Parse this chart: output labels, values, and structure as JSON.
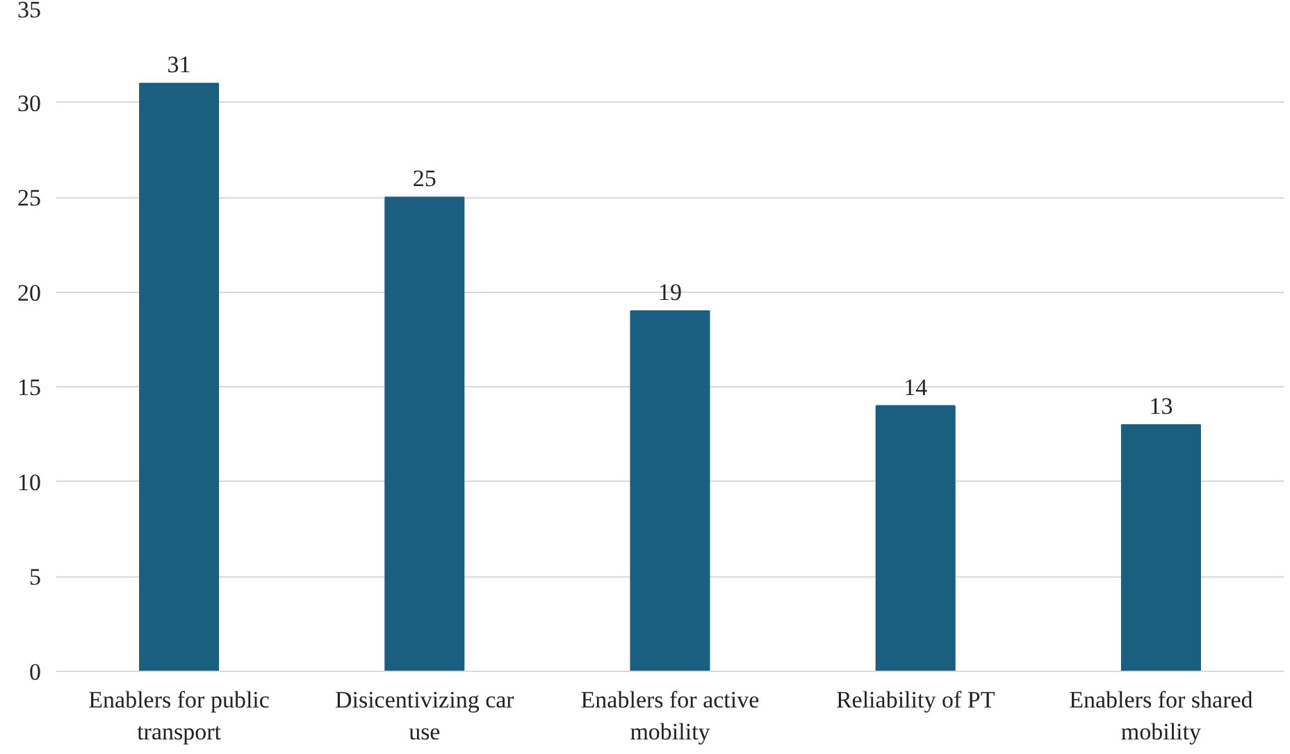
{
  "chart_data": {
    "type": "bar",
    "categories": [
      "Enablers for public transport",
      "Disicentivizing car use",
      "Enablers for active mobility",
      "Reliability of PT",
      "Enablers for shared mobility"
    ],
    "values": [
      31,
      25,
      19,
      14,
      13
    ],
    "color": "#1a5f80",
    "ylim": [
      0,
      35
    ],
    "yticks": [
      0,
      5,
      10,
      15,
      20,
      25,
      30,
      35
    ],
    "grid": "y",
    "data_labels": true
  }
}
